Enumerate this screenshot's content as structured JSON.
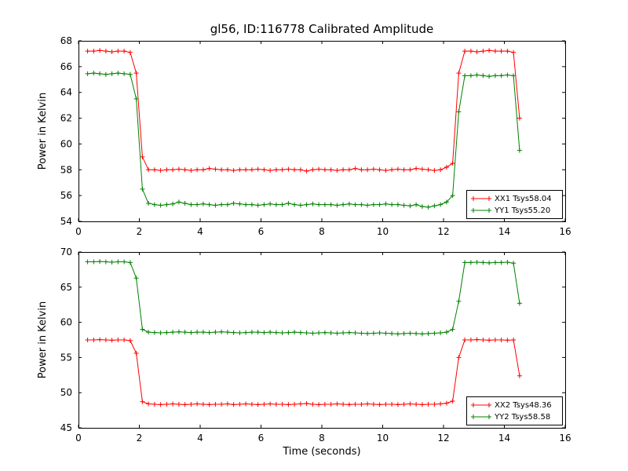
{
  "title": "gl56, ID:116778 Calibrated Amplitude",
  "colors": {
    "xx": "#ff0000",
    "yy": "#008000",
    "axis": "#000000",
    "background": "#ffffff"
  },
  "chart_data": [
    {
      "type": "line",
      "ylabel": "Power in Kelvin",
      "xlabel": "",
      "xlim": [
        0,
        16
      ],
      "ylim": [
        54,
        68
      ],
      "xticks": [
        0,
        2,
        4,
        6,
        8,
        10,
        12,
        14,
        16
      ],
      "yticks": [
        54,
        56,
        58,
        60,
        62,
        64,
        66,
        68
      ],
      "legend_position": "lower right",
      "x": [
        0.3,
        0.5,
        0.7,
        0.9,
        1.1,
        1.3,
        1.5,
        1.7,
        1.9,
        2.1,
        2.3,
        2.5,
        2.7,
        2.9,
        3.1,
        3.3,
        3.5,
        3.7,
        3.9,
        4.1,
        4.3,
        4.5,
        4.7,
        4.9,
        5.1,
        5.3,
        5.5,
        5.7,
        5.9,
        6.1,
        6.3,
        6.5,
        6.7,
        6.9,
        7.1,
        7.3,
        7.5,
        7.7,
        7.9,
        8.1,
        8.3,
        8.5,
        8.7,
        8.9,
        9.1,
        9.3,
        9.5,
        9.7,
        9.9,
        10.1,
        10.3,
        10.5,
        10.7,
        10.9,
        11.1,
        11.3,
        11.5,
        11.7,
        11.9,
        12.1,
        12.3,
        12.5,
        12.7,
        12.9,
        13.1,
        13.3,
        13.5,
        13.7,
        13.9,
        14.1,
        14.3,
        14.5
      ],
      "series": [
        {
          "name": "XX1 Tsys58.04",
          "color": "#ff0000",
          "marker": "+",
          "y": [
            67.2,
            67.2,
            67.25,
            67.2,
            67.15,
            67.2,
            67.2,
            67.1,
            65.5,
            59.0,
            58.0,
            58.0,
            57.95,
            58.0,
            58.0,
            58.05,
            58.0,
            57.95,
            58.0,
            58.0,
            58.1,
            58.05,
            58.0,
            58.0,
            57.95,
            58.0,
            58.0,
            58.0,
            58.05,
            58.0,
            57.95,
            58.0,
            58.0,
            58.05,
            58.0,
            58.0,
            57.9,
            58.0,
            58.05,
            58.0,
            58.0,
            57.95,
            58.0,
            58.0,
            58.1,
            58.0,
            58.0,
            58.05,
            58.0,
            57.95,
            58.0,
            58.05,
            58.0,
            58.0,
            58.1,
            58.05,
            58.0,
            57.95,
            58.0,
            58.2,
            58.5,
            65.5,
            67.2,
            67.2,
            67.15,
            67.2,
            67.25,
            67.2,
            67.2,
            67.2,
            67.1,
            62.0
          ]
        },
        {
          "name": "YY1 Tsys55.20",
          "color": "#008000",
          "marker": "+",
          "y": [
            65.45,
            65.5,
            65.45,
            65.4,
            65.45,
            65.5,
            65.45,
            65.4,
            63.5,
            56.5,
            55.4,
            55.3,
            55.25,
            55.3,
            55.35,
            55.5,
            55.4,
            55.3,
            55.3,
            55.35,
            55.3,
            55.25,
            55.3,
            55.3,
            55.4,
            55.35,
            55.3,
            55.3,
            55.25,
            55.3,
            55.35,
            55.3,
            55.3,
            55.4,
            55.3,
            55.25,
            55.3,
            55.35,
            55.3,
            55.3,
            55.3,
            55.25,
            55.3,
            55.35,
            55.3,
            55.3,
            55.25,
            55.3,
            55.3,
            55.35,
            55.3,
            55.3,
            55.25,
            55.2,
            55.3,
            55.15,
            55.1,
            55.2,
            55.3,
            55.5,
            56.0,
            62.5,
            65.3,
            65.3,
            65.35,
            65.3,
            65.25,
            65.3,
            65.3,
            65.35,
            65.3,
            59.5
          ]
        }
      ]
    },
    {
      "type": "line",
      "ylabel": "Power in Kelvin",
      "xlabel": "Time (seconds)",
      "xlim": [
        0,
        16
      ],
      "ylim": [
        45,
        70
      ],
      "xticks": [
        0,
        2,
        4,
        6,
        8,
        10,
        12,
        14,
        16
      ],
      "yticks": [
        45,
        50,
        55,
        60,
        65,
        70
      ],
      "legend_position": "lower right",
      "x": [
        0.3,
        0.5,
        0.7,
        0.9,
        1.1,
        1.3,
        1.5,
        1.7,
        1.9,
        2.1,
        2.3,
        2.5,
        2.7,
        2.9,
        3.1,
        3.3,
        3.5,
        3.7,
        3.9,
        4.1,
        4.3,
        4.5,
        4.7,
        4.9,
        5.1,
        5.3,
        5.5,
        5.7,
        5.9,
        6.1,
        6.3,
        6.5,
        6.7,
        6.9,
        7.1,
        7.3,
        7.5,
        7.7,
        7.9,
        8.1,
        8.3,
        8.5,
        8.7,
        8.9,
        9.1,
        9.3,
        9.5,
        9.7,
        9.9,
        10.1,
        10.3,
        10.5,
        10.7,
        10.9,
        11.1,
        11.3,
        11.5,
        11.7,
        11.9,
        12.1,
        12.3,
        12.5,
        12.7,
        12.9,
        13.1,
        13.3,
        13.5,
        13.7,
        13.9,
        14.1,
        14.3,
        14.5
      ],
      "series": [
        {
          "name": "XX2 Tsys48.36",
          "color": "#ff0000",
          "marker": "+",
          "y": [
            57.5,
            57.5,
            57.55,
            57.5,
            57.45,
            57.5,
            57.5,
            57.4,
            55.6,
            48.7,
            48.4,
            48.35,
            48.3,
            48.35,
            48.4,
            48.35,
            48.3,
            48.35,
            48.4,
            48.35,
            48.3,
            48.35,
            48.35,
            48.4,
            48.3,
            48.35,
            48.4,
            48.35,
            48.3,
            48.35,
            48.4,
            48.35,
            48.35,
            48.3,
            48.35,
            48.4,
            48.45,
            48.35,
            48.3,
            48.35,
            48.35,
            48.4,
            48.35,
            48.3,
            48.35,
            48.35,
            48.4,
            48.35,
            48.3,
            48.35,
            48.35,
            48.3,
            48.35,
            48.4,
            48.35,
            48.3,
            48.35,
            48.35,
            48.4,
            48.5,
            48.8,
            55.0,
            57.5,
            57.5,
            57.55,
            57.5,
            57.45,
            57.5,
            57.5,
            57.45,
            57.5,
            52.4
          ]
        },
        {
          "name": "YY2 Tsys58.58",
          "color": "#008000",
          "marker": "+",
          "y": [
            68.6,
            68.6,
            68.65,
            68.6,
            68.55,
            68.6,
            68.6,
            68.5,
            66.3,
            59.0,
            58.6,
            58.55,
            58.5,
            58.55,
            58.6,
            58.65,
            58.6,
            58.55,
            58.6,
            58.6,
            58.55,
            58.6,
            58.65,
            58.6,
            58.55,
            58.5,
            58.55,
            58.6,
            58.6,
            58.55,
            58.6,
            58.55,
            58.5,
            58.55,
            58.6,
            58.55,
            58.5,
            58.45,
            58.5,
            58.55,
            58.5,
            58.45,
            58.5,
            58.55,
            58.5,
            58.45,
            58.4,
            58.45,
            58.5,
            58.45,
            58.4,
            58.35,
            58.4,
            58.45,
            58.4,
            58.35,
            58.4,
            58.45,
            58.5,
            58.6,
            59.0,
            63.0,
            68.5,
            68.5,
            68.55,
            68.5,
            68.45,
            68.5,
            68.5,
            68.55,
            68.4,
            62.7
          ]
        }
      ]
    }
  ]
}
